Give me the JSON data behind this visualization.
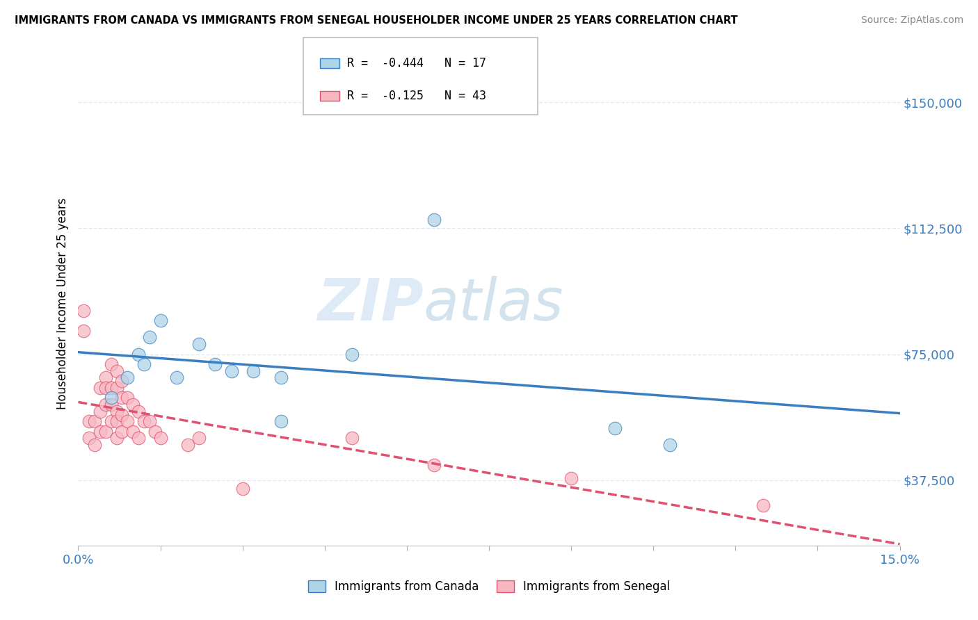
{
  "title": "IMMIGRANTS FROM CANADA VS IMMIGRANTS FROM SENEGAL HOUSEHOLDER INCOME UNDER 25 YEARS CORRELATION CHART",
  "source": "Source: ZipAtlas.com",
  "ylabel": "Householder Income Under 25 years",
  "xlim": [
    0.0,
    0.15
  ],
  "ylim": [
    18000,
    162000
  ],
  "yticks": [
    37500,
    75000,
    112500,
    150000
  ],
  "ytick_labels": [
    "$37,500",
    "$75,000",
    "$112,500",
    "$150,000"
  ],
  "xticks": [
    0.0,
    0.015,
    0.03,
    0.045,
    0.06,
    0.075,
    0.09,
    0.105,
    0.12,
    0.135,
    0.15
  ],
  "canada_R": -0.444,
  "canada_N": 17,
  "senegal_R": -0.125,
  "senegal_N": 43,
  "canada_color": "#aed4e8",
  "senegal_color": "#f7b8c2",
  "canada_line_color": "#3a7ebf",
  "senegal_line_color": "#e05070",
  "watermark_zip": "ZIP",
  "watermark_atlas": "atlas",
  "background_color": "#ffffff",
  "grid_color": "#e0e8f0",
  "canada_x": [
    0.006,
    0.009,
    0.011,
    0.012,
    0.013,
    0.015,
    0.018,
    0.022,
    0.025,
    0.028,
    0.032,
    0.037,
    0.037,
    0.05,
    0.065,
    0.098,
    0.108
  ],
  "canada_y": [
    62000,
    68000,
    75000,
    72000,
    80000,
    85000,
    68000,
    78000,
    72000,
    70000,
    70000,
    68000,
    55000,
    75000,
    115000,
    53000,
    48000
  ],
  "senegal_x": [
    0.001,
    0.001,
    0.002,
    0.002,
    0.003,
    0.003,
    0.004,
    0.004,
    0.004,
    0.005,
    0.005,
    0.005,
    0.005,
    0.006,
    0.006,
    0.006,
    0.006,
    0.007,
    0.007,
    0.007,
    0.007,
    0.007,
    0.008,
    0.008,
    0.008,
    0.008,
    0.009,
    0.009,
    0.01,
    0.01,
    0.011,
    0.011,
    0.012,
    0.013,
    0.014,
    0.015,
    0.02,
    0.022,
    0.03,
    0.05,
    0.065,
    0.09,
    0.125
  ],
  "senegal_y": [
    88000,
    82000,
    55000,
    50000,
    55000,
    48000,
    65000,
    58000,
    52000,
    68000,
    65000,
    60000,
    52000,
    72000,
    65000,
    60000,
    55000,
    70000,
    65000,
    58000,
    55000,
    50000,
    67000,
    62000,
    57000,
    52000,
    62000,
    55000,
    60000,
    52000,
    58000,
    50000,
    55000,
    55000,
    52000,
    50000,
    48000,
    50000,
    35000,
    50000,
    42000,
    38000,
    30000
  ]
}
